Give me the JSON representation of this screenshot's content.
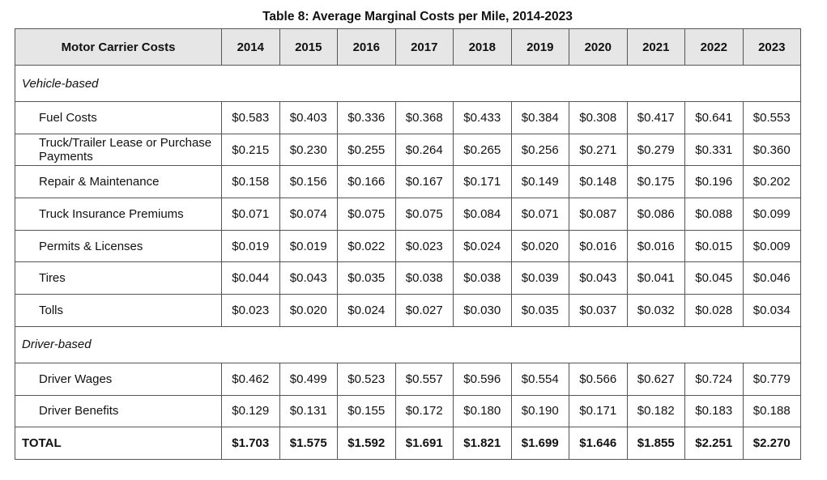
{
  "title": "Table 8: Average Marginal Costs per Mile, 2014-2023",
  "header": {
    "label": "Motor Carrier Costs",
    "years": [
      "2014",
      "2015",
      "2016",
      "2017",
      "2018",
      "2019",
      "2020",
      "2021",
      "2022",
      "2023"
    ]
  },
  "sections": [
    {
      "name": "Vehicle-based",
      "rows": [
        {
          "label": "Fuel Costs",
          "values": [
            "$0.583",
            "$0.403",
            "$0.336",
            "$0.368",
            "$0.433",
            "$0.384",
            "$0.308",
            "$0.417",
            "$0.641",
            "$0.553"
          ]
        },
        {
          "label": "Truck/Trailer Lease or Purchase Payments",
          "values": [
            "$0.215",
            "$0.230",
            "$0.255",
            "$0.264",
            "$0.265",
            "$0.256",
            "$0.271",
            "$0.279",
            "$0.331",
            "$0.360"
          ]
        },
        {
          "label": "Repair & Maintenance",
          "values": [
            "$0.158",
            "$0.156",
            "$0.166",
            "$0.167",
            "$0.171",
            "$0.149",
            "$0.148",
            "$0.175",
            "$0.196",
            "$0.202"
          ]
        },
        {
          "label": "Truck Insurance Premiums",
          "values": [
            "$0.071",
            "$0.074",
            "$0.075",
            "$0.075",
            "$0.084",
            "$0.071",
            "$0.087",
            "$0.086",
            "$0.088",
            "$0.099"
          ]
        },
        {
          "label": "Permits & Licenses",
          "values": [
            "$0.019",
            "$0.019",
            "$0.022",
            "$0.023",
            "$0.024",
            "$0.020",
            "$0.016",
            "$0.016",
            "$0.015",
            "$0.009"
          ]
        },
        {
          "label": "Tires",
          "values": [
            "$0.044",
            "$0.043",
            "$0.035",
            "$0.038",
            "$0.038",
            "$0.039",
            "$0.043",
            "$0.041",
            "$0.045",
            "$0.046"
          ]
        },
        {
          "label": "Tolls",
          "values": [
            "$0.023",
            "$0.020",
            "$0.024",
            "$0.027",
            "$0.030",
            "$0.035",
            "$0.037",
            "$0.032",
            "$0.028",
            "$0.034"
          ]
        }
      ]
    },
    {
      "name": "Driver-based",
      "rows": [
        {
          "label": "Driver Wages",
          "values": [
            "$0.462",
            "$0.499",
            "$0.523",
            "$0.557",
            "$0.596",
            "$0.554",
            "$0.566",
            "$0.627",
            "$0.724",
            "$0.779"
          ]
        },
        {
          "label": "Driver Benefits",
          "values": [
            "$0.129",
            "$0.131",
            "$0.155",
            "$0.172",
            "$0.180",
            "$0.190",
            "$0.171",
            "$0.182",
            "$0.183",
            "$0.188"
          ]
        }
      ]
    }
  ],
  "total": {
    "label": "TOTAL",
    "values": [
      "$1.703",
      "$1.575",
      "$1.592",
      "$1.691",
      "$1.821",
      "$1.699",
      "$1.646",
      "$1.855",
      "$2.251",
      "$2.270"
    ]
  }
}
